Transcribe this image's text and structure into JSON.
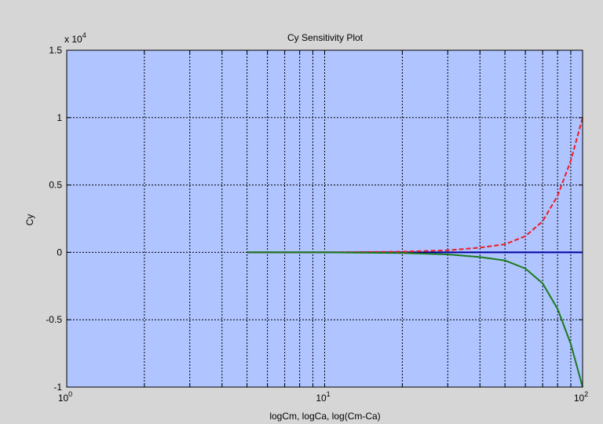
{
  "chart_data": {
    "type": "line",
    "title": "Cy Sensitivity Plot",
    "xlabel": "logCm, logCa, log(Cm-Ca)",
    "ylabel": "Cy",
    "x_scale": "log",
    "xlim": [
      1,
      100
    ],
    "ylim": [
      -10000,
      15000
    ],
    "y_exponent_label": "x 10",
    "y_exponent_power": "4",
    "x_tick_labels": [
      {
        "value": 1,
        "base": "10",
        "power": "0"
      },
      {
        "value": 10,
        "base": "10",
        "power": "1"
      },
      {
        "value": 100,
        "base": "10",
        "power": "2"
      }
    ],
    "y_tick_labels": [
      {
        "value": 15000,
        "label": "1.5"
      },
      {
        "value": 10000,
        "label": "1"
      },
      {
        "value": 5000,
        "label": "0.5"
      },
      {
        "value": 0,
        "label": "0"
      },
      {
        "value": -5000,
        "label": "-0.5"
      },
      {
        "value": -10000,
        "label": "-1"
      }
    ],
    "x_minor_ticks": [
      2,
      3,
      4,
      5,
      6,
      7,
      8,
      9,
      20,
      30,
      40,
      50,
      60,
      70,
      80,
      90
    ],
    "grid": true,
    "grid_style": "dotted",
    "background_color": "#b0c4ff",
    "series": [
      {
        "color": "#0000a0",
        "dash": "solid",
        "x": [
          5,
          10,
          20,
          50,
          100
        ],
        "y": [
          0,
          0,
          0,
          0,
          0
        ]
      },
      {
        "color": "#ee1c24",
        "dash": "dashed",
        "x": [
          5,
          10,
          20,
          30,
          40,
          50,
          60,
          70,
          80,
          90,
          100
        ],
        "y": [
          0,
          0,
          50,
          150,
          350,
          600,
          1200,
          2300,
          4200,
          6800,
          10000
        ]
      },
      {
        "color": "#1a7a1a",
        "dash": "solid",
        "x": [
          5,
          10,
          20,
          30,
          40,
          50,
          60,
          70,
          80,
          90,
          100
        ],
        "y": [
          0,
          0,
          -50,
          -150,
          -350,
          -600,
          -1200,
          -2300,
          -4200,
          -6800,
          -10000
        ]
      }
    ]
  }
}
